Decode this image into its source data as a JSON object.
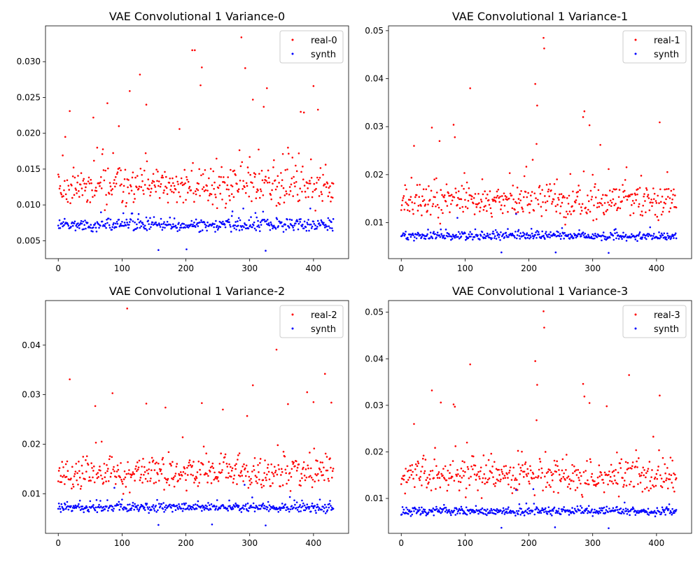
{
  "chart_data": [
    {
      "type": "scatter",
      "title": "VAE Convolutional 1 Variance-0",
      "xlabel": "",
      "ylabel": "",
      "xlim": [
        -20,
        455
      ],
      "ylim": [
        0.0025,
        0.035
      ],
      "xticks": [
        0,
        100,
        200,
        300,
        400
      ],
      "yticks": [
        0.005,
        0.01,
        0.015,
        0.02,
        0.025,
        0.03
      ],
      "ytick_labels": [
        "0.005",
        "0.010",
        "0.015",
        "0.020",
        "0.025",
        "0.030"
      ],
      "legend_position": "upper right",
      "n_points": 432,
      "series": [
        {
          "name": "real-0",
          "color": "#ff0000",
          "gen": {
            "seed": 11,
            "base": 0.0125,
            "spread": 0.004,
            "min": 0.006,
            "max": 0.02
          },
          "outliers": [
            [
              11,
              0.0195
            ],
            [
              18,
              0.0231
            ],
            [
              77,
              0.0242
            ],
            [
              112,
              0.0259
            ],
            [
              128,
              0.0282
            ],
            [
              138,
              0.024
            ],
            [
              214,
              0.0316
            ],
            [
              210,
              0.0316
            ],
            [
              223,
              0.0267
            ],
            [
              225,
              0.0292
            ],
            [
              287,
              0.0334
            ],
            [
              293,
              0.0291
            ],
            [
              305,
              0.0247
            ],
            [
              322,
              0.0237
            ],
            [
              327,
              0.0263
            ],
            [
              380,
              0.023
            ],
            [
              385,
              0.0229
            ],
            [
              400,
              0.0266
            ],
            [
              407,
              0.0233
            ],
            [
              190,
              0.0206
            ],
            [
              55,
              0.0222
            ],
            [
              95,
              0.021
            ]
          ]
        },
        {
          "name": "synth",
          "color": "#0000ff",
          "gen": {
            "seed": 22,
            "base": 0.0072,
            "spread": 0.0012,
            "min": 0.0038,
            "max": 0.01
          },
          "outliers": [
            [
              157,
              0.0037
            ],
            [
              201,
              0.0038
            ],
            [
              325,
              0.0036
            ],
            [
              290,
              0.0095
            ],
            [
              395,
              0.0095
            ]
          ]
        }
      ]
    },
    {
      "type": "scatter",
      "title": "VAE Convolutional 1 Variance-1",
      "xlabel": "",
      "ylabel": "",
      "xlim": [
        -20,
        455
      ],
      "ylim": [
        0.0025,
        0.051
      ],
      "xticks": [
        0,
        100,
        200,
        300,
        400
      ],
      "yticks": [
        0.01,
        0.02,
        0.03,
        0.04,
        0.05
      ],
      "ytick_labels": [
        "0.01",
        "0.02",
        "0.03",
        "0.04",
        "0.05"
      ],
      "legend_position": "upper right",
      "n_points": 432,
      "series": [
        {
          "name": "real-1",
          "color": "#ff0000",
          "gen": {
            "seed": 33,
            "base": 0.0145,
            "spread": 0.005,
            "min": 0.007,
            "max": 0.025
          },
          "outliers": [
            [
              48,
              0.0298
            ],
            [
              82,
              0.0304
            ],
            [
              84,
              0.0278
            ],
            [
              108,
              0.038
            ],
            [
              210,
              0.0389
            ],
            [
              213,
              0.0344
            ],
            [
              223,
              0.0485
            ],
            [
              224,
              0.0463
            ],
            [
              212,
              0.0264
            ],
            [
              285,
              0.032
            ],
            [
              287,
              0.0332
            ],
            [
              295,
              0.0303
            ],
            [
              312,
              0.0262
            ],
            [
              405,
              0.0309
            ],
            [
              20,
              0.026
            ],
            [
              60,
              0.027
            ]
          ]
        },
        {
          "name": "synth",
          "color": "#0000ff",
          "gen": {
            "seed": 44,
            "base": 0.0072,
            "spread": 0.0012,
            "min": 0.004,
            "max": 0.0105
          },
          "outliers": [
            [
              157,
              0.0038
            ],
            [
              242,
              0.0038
            ],
            [
              325,
              0.0037
            ],
            [
              180,
              0.0118
            ],
            [
              88,
              0.011
            ]
          ]
        }
      ]
    },
    {
      "type": "scatter",
      "title": "VAE Convolutional 1 Variance-2",
      "xlabel": "",
      "ylabel": "",
      "xlim": [
        -20,
        455
      ],
      "ylim": [
        0.002,
        0.049
      ],
      "xticks": [
        0,
        100,
        200,
        300,
        400
      ],
      "yticks": [
        0.01,
        0.02,
        0.03,
        0.04
      ],
      "ytick_labels": [
        "0.01",
        "0.02",
        "0.03",
        "0.04"
      ],
      "legend_position": "upper right",
      "n_points": 432,
      "series": [
        {
          "name": "real-2",
          "color": "#ff0000",
          "gen": {
            "seed": 55,
            "base": 0.014,
            "spread": 0.0045,
            "min": 0.007,
            "max": 0.024
          },
          "outliers": [
            [
              18,
              0.0331
            ],
            [
              85,
              0.0303
            ],
            [
              108,
              0.0474
            ],
            [
              138,
              0.0282
            ],
            [
              168,
              0.0274
            ],
            [
              225,
              0.0283
            ],
            [
              258,
              0.027
            ],
            [
              296,
              0.0257
            ],
            [
              305,
              0.0319
            ],
            [
              342,
              0.0391
            ],
            [
              360,
              0.0281
            ],
            [
              390,
              0.0305
            ],
            [
              400,
              0.0285
            ],
            [
              418,
              0.0342
            ],
            [
              428,
              0.0284
            ],
            [
              58,
              0.0277
            ]
          ]
        },
        {
          "name": "synth",
          "color": "#0000ff",
          "gen": {
            "seed": 66,
            "base": 0.0072,
            "spread": 0.0012,
            "min": 0.004,
            "max": 0.0105
          },
          "outliers": [
            [
              157,
              0.0037
            ],
            [
              241,
              0.0038
            ],
            [
              325,
              0.0036
            ],
            [
              292,
              0.0118
            ],
            [
              88,
              0.0112
            ]
          ]
        }
      ]
    },
    {
      "type": "scatter",
      "title": "VAE Convolutional 1 Variance-3",
      "xlabel": "",
      "ylabel": "",
      "xlim": [
        -20,
        455
      ],
      "ylim": [
        0.0025,
        0.0525
      ],
      "xticks": [
        0,
        100,
        200,
        300,
        400
      ],
      "yticks": [
        0.01,
        0.02,
        0.03,
        0.04,
        0.05
      ],
      "ytick_labels": [
        "0.01",
        "0.02",
        "0.03",
        "0.04",
        "0.05"
      ],
      "legend_position": "upper right",
      "n_points": 432,
      "series": [
        {
          "name": "real-3",
          "color": "#ff0000",
          "gen": {
            "seed": 77,
            "base": 0.0145,
            "spread": 0.005,
            "min": 0.007,
            "max": 0.025
          },
          "outliers": [
            [
              48,
              0.0332
            ],
            [
              62,
              0.0306
            ],
            [
              82,
              0.0302
            ],
            [
              84,
              0.0297
            ],
            [
              108,
              0.0388
            ],
            [
              210,
              0.0395
            ],
            [
              213,
              0.0344
            ],
            [
              223,
              0.0502
            ],
            [
              224,
              0.0467
            ],
            [
              212,
              0.0268
            ],
            [
              285,
              0.0346
            ],
            [
              287,
              0.0319
            ],
            [
              295,
              0.0305
            ],
            [
              322,
              0.0298
            ],
            [
              357,
              0.0365
            ],
            [
              405,
              0.0321
            ],
            [
              20,
              0.026
            ]
          ]
        },
        {
          "name": "synth",
          "color": "#0000ff",
          "gen": {
            "seed": 88,
            "base": 0.0072,
            "spread": 0.0012,
            "min": 0.004,
            "max": 0.0105
          },
          "outliers": [
            [
              157,
              0.0037
            ],
            [
              241,
              0.0038
            ],
            [
              325,
              0.0036
            ],
            [
              180,
              0.0118
            ],
            [
              207,
              0.012
            ]
          ]
        }
      ]
    }
  ]
}
